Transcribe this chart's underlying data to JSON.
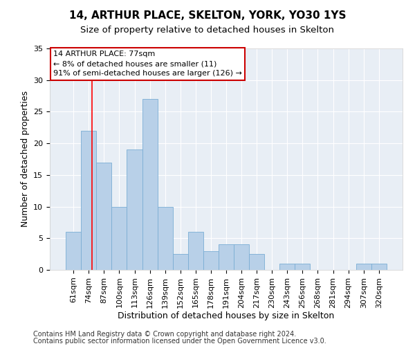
{
  "title1": "14, ARTHUR PLACE, SKELTON, YORK, YO30 1YS",
  "title2": "Size of property relative to detached houses in Skelton",
  "xlabel": "Distribution of detached houses by size in Skelton",
  "ylabel": "Number of detached properties",
  "categories": [
    "61sqm",
    "74sqm",
    "87sqm",
    "100sqm",
    "113sqm",
    "126sqm",
    "139sqm",
    "152sqm",
    "165sqm",
    "178sqm",
    "191sqm",
    "204sqm",
    "217sqm",
    "230sqm",
    "243sqm",
    "256sqm",
    "268sqm",
    "281sqm",
    "294sqm",
    "307sqm",
    "320sqm"
  ],
  "values": [
    6,
    22,
    17,
    10,
    19,
    27,
    10,
    2.5,
    6,
    3,
    4,
    4,
    2.5,
    0,
    1,
    1,
    0,
    0,
    0,
    1,
    1
  ],
  "bar_color": "#b8d0e8",
  "bar_edge_color": "#7aadd4",
  "bar_width": 1.0,
  "red_line_x": 1.22,
  "annotation_text": "14 ARTHUR PLACE: 77sqm\n← 8% of detached houses are smaller (11)\n91% of semi-detached houses are larger (126) →",
  "annotation_box_color": "#ffffff",
  "annotation_box_edge_color": "#cc0000",
  "ylim": [
    0,
    35
  ],
  "yticks": [
    0,
    5,
    10,
    15,
    20,
    25,
    30,
    35
  ],
  "bg_color": "#e8eef5",
  "footer_line1": "Contains HM Land Registry data © Crown copyright and database right 2024.",
  "footer_line2": "Contains public sector information licensed under the Open Government Licence v3.0.",
  "title1_fontsize": 11,
  "title2_fontsize": 9.5,
  "xlabel_fontsize": 9,
  "ylabel_fontsize": 9,
  "tick_fontsize": 8,
  "annotation_fontsize": 8,
  "footer_fontsize": 7
}
